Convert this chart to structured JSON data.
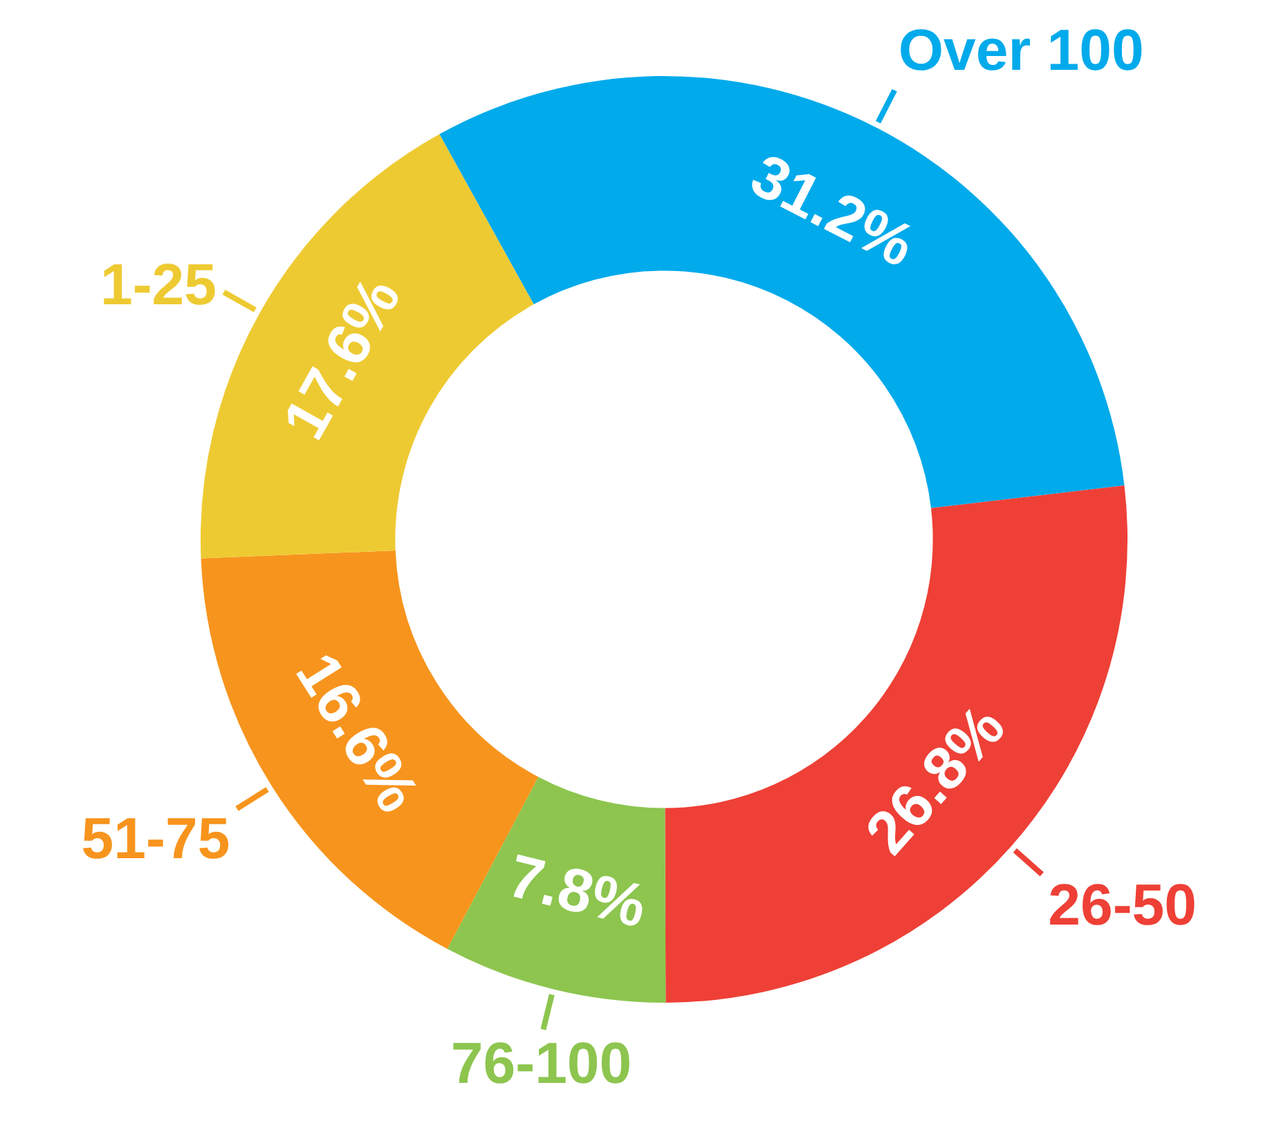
{
  "chart_data": {
    "type": "donut",
    "categories": [
      "Over 100",
      "26-50",
      "76-100",
      "51-75",
      "1-25"
    ],
    "values": [
      31.2,
      26.8,
      7.8,
      16.6,
      17.6
    ],
    "value_labels": [
      "31.2%",
      "26.8%",
      "7.8%",
      "16.6%",
      "17.6%"
    ],
    "colors": [
      "#00aaeb",
      "#ee4036",
      "#8dc54f",
      "#f7941d",
      "#eeca32"
    ]
  }
}
